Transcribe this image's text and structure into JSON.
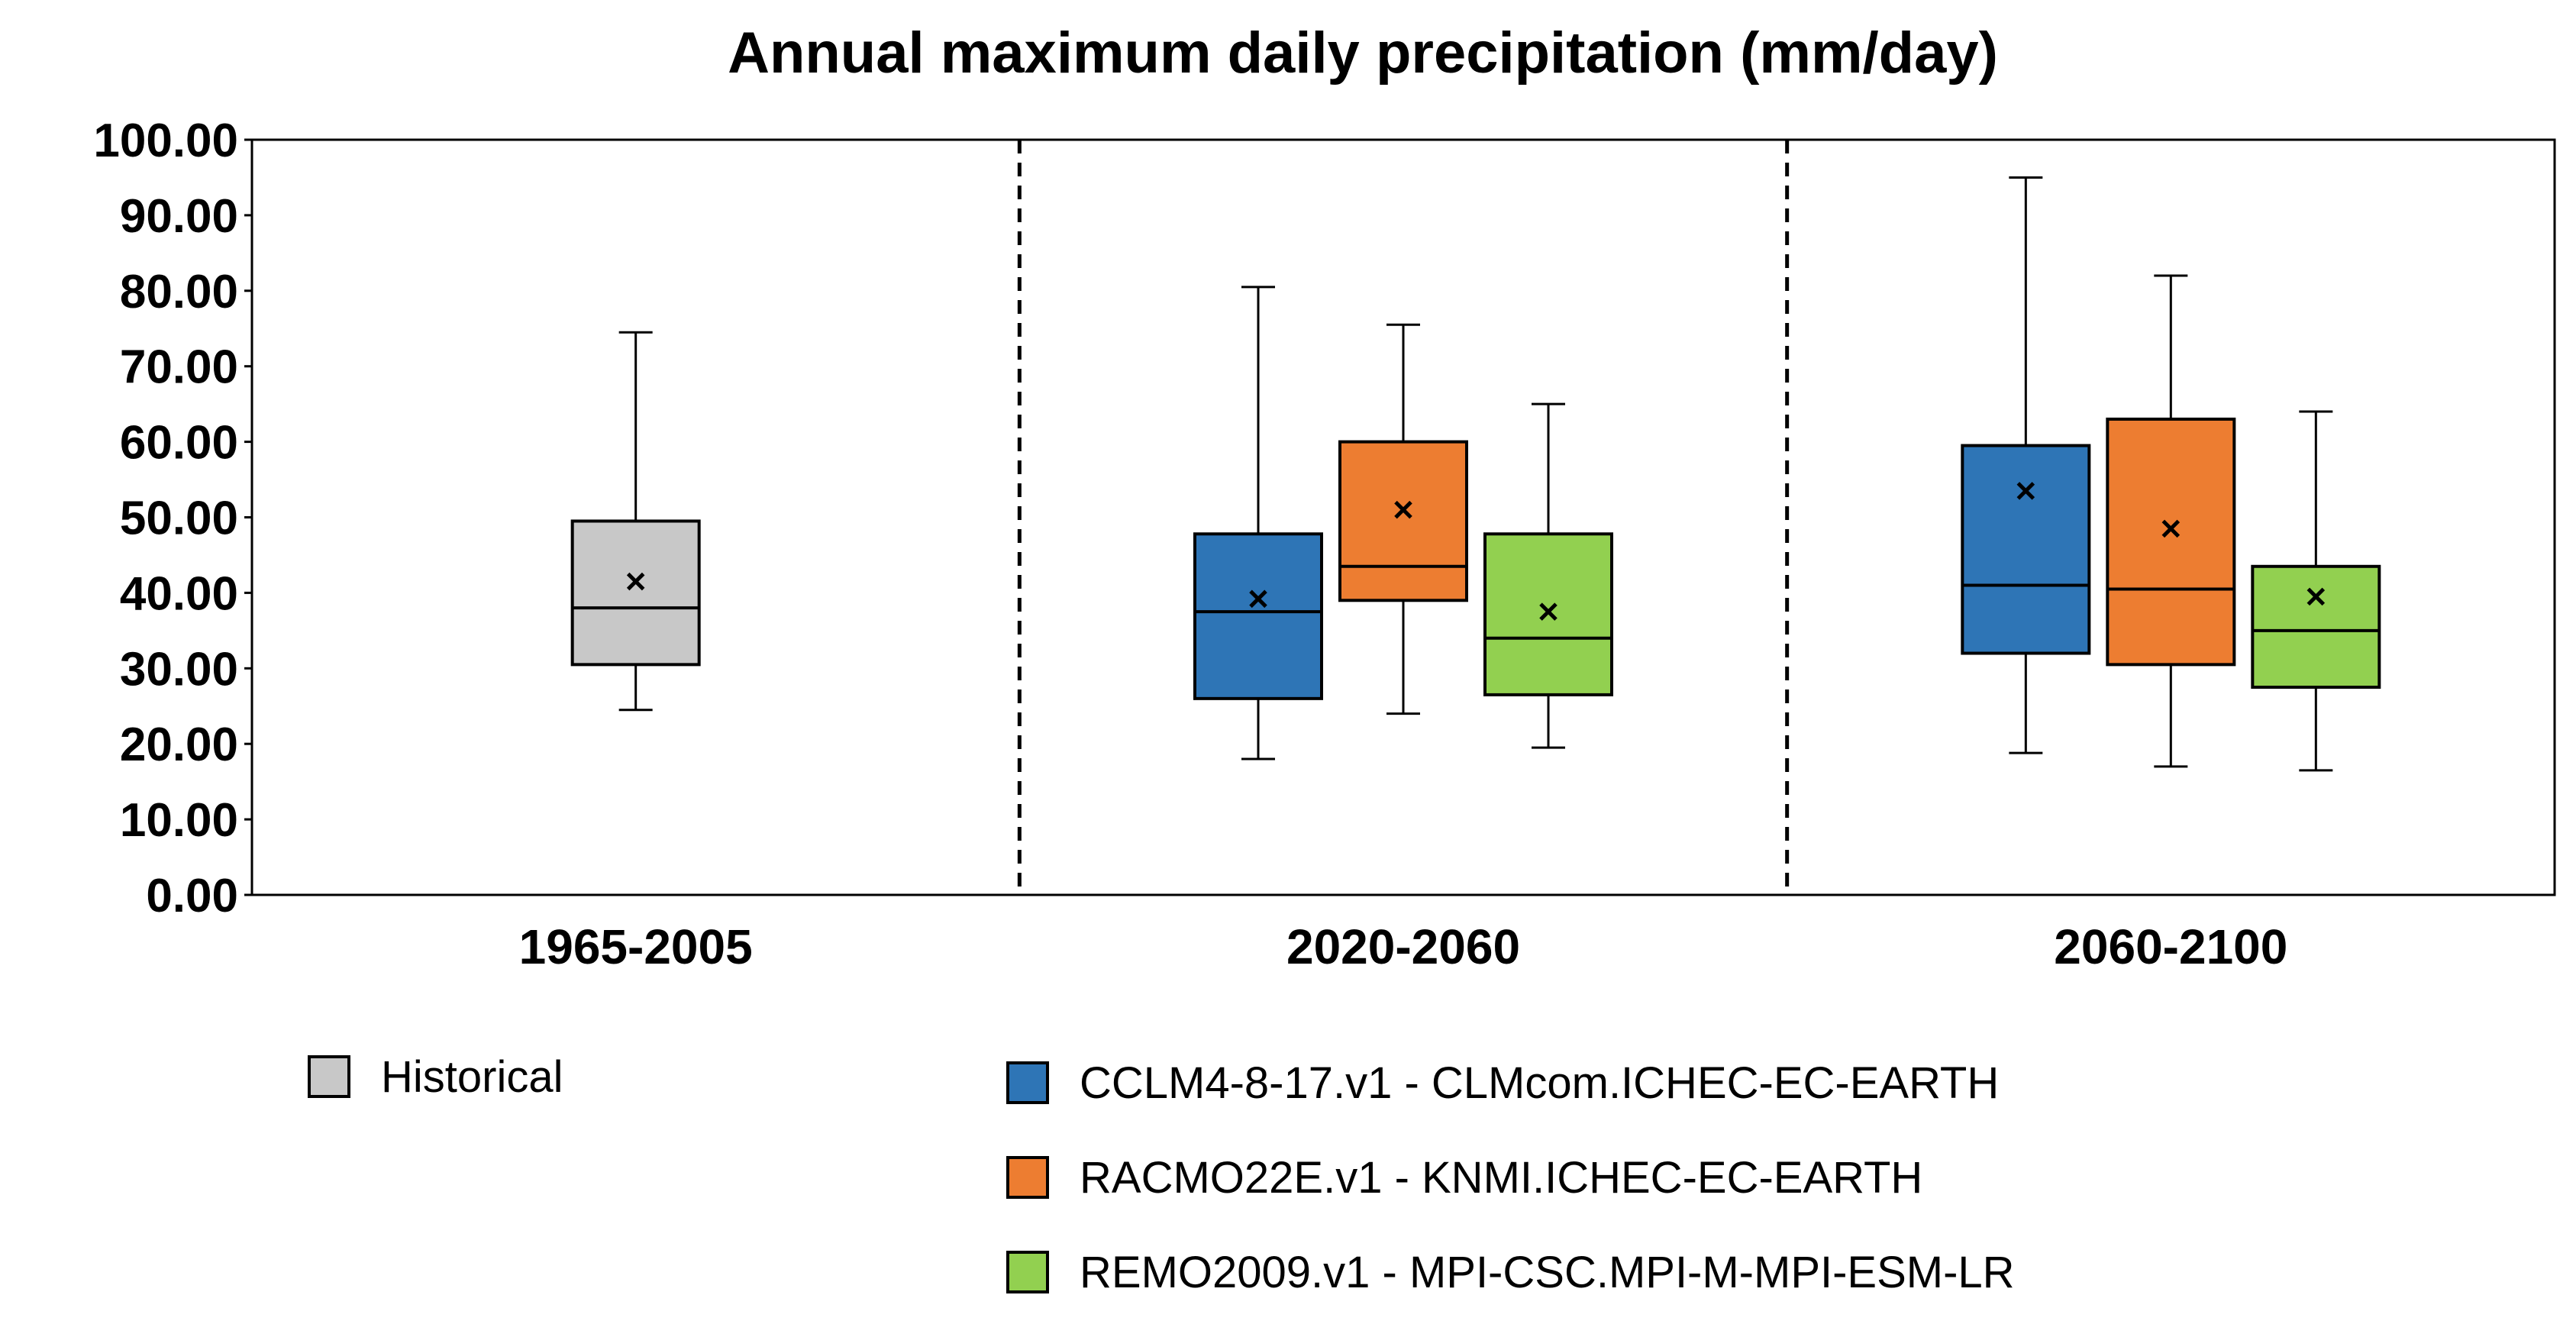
{
  "chart_data": {
    "type": "box",
    "title": "Annual maximum daily precipitation (mm/day)",
    "xlabel": "",
    "ylabel": "",
    "ylim": [
      0,
      100
    ],
    "ytick_step": 10,
    "ytick_labels": [
      "0.00",
      "10.00",
      "20.00",
      "30.00",
      "40.00",
      "50.00",
      "60.00",
      "70.00",
      "80.00",
      "90.00",
      "100.00"
    ],
    "categories": [
      "1965-2005",
      "2020-2060",
      "2060-2100"
    ],
    "group_separators": "dashed vertical lines between periods",
    "series": [
      {
        "name": "Historical",
        "color": "#c8c8c8",
        "boxes": [
          {
            "category": "1965-2005",
            "min": 24.5,
            "q1": 30.5,
            "median": 38.0,
            "q3": 49.5,
            "max": 74.5,
            "mean": 41.5
          }
        ]
      },
      {
        "name": "CCLM4-8-17.v1 - CLMcom.ICHEC-EC-EARTH",
        "color": "#2e75b6",
        "boxes": [
          {
            "category": "2020-2060",
            "min": 18.0,
            "q1": 26.0,
            "median": 37.5,
            "q3": 47.8,
            "max": 80.5,
            "mean": 39.2
          },
          {
            "category": "2060-2100",
            "min": 18.8,
            "q1": 32.0,
            "median": 41.0,
            "q3": 59.5,
            "max": 95.0,
            "mean": 53.5
          }
        ]
      },
      {
        "name": "RACMO22E.v1 - KNMI.ICHEC-EC-EARTH",
        "color": "#ed7d31",
        "boxes": [
          {
            "category": "2020-2060",
            "min": 24.0,
            "q1": 39.0,
            "median": 43.5,
            "q3": 60.0,
            "max": 75.5,
            "mean": 51.0
          },
          {
            "category": "2060-2100",
            "min": 17.0,
            "q1": 30.5,
            "median": 40.5,
            "q3": 63.0,
            "max": 82.0,
            "mean": 48.5
          }
        ]
      },
      {
        "name": "REMO2009.v1 - MPI-CSC.MPI-M-MPI-ESM-LR",
        "color": "#92d050",
        "boxes": [
          {
            "category": "2020-2060",
            "min": 19.5,
            "q1": 26.5,
            "median": 34.0,
            "q3": 47.8,
            "max": 65.0,
            "mean": 37.5
          },
          {
            "category": "2060-2100",
            "min": 16.5,
            "q1": 27.5,
            "median": 35.0,
            "q3": 43.5,
            "max": 64.0,
            "mean": 39.5
          }
        ]
      }
    ],
    "legend": {
      "placement": "bottom",
      "entries": [
        "Historical",
        "CCLM4-8-17.v1 - CLMcom.ICHEC-EC-EARTH",
        "RACMO22E.v1 - KNMI.ICHEC-EC-EARTH",
        "REMO2009.v1 - MPI-CSC.MPI-M-MPI-ESM-LR"
      ]
    },
    "mean_marker": "×",
    "grid": false
  }
}
